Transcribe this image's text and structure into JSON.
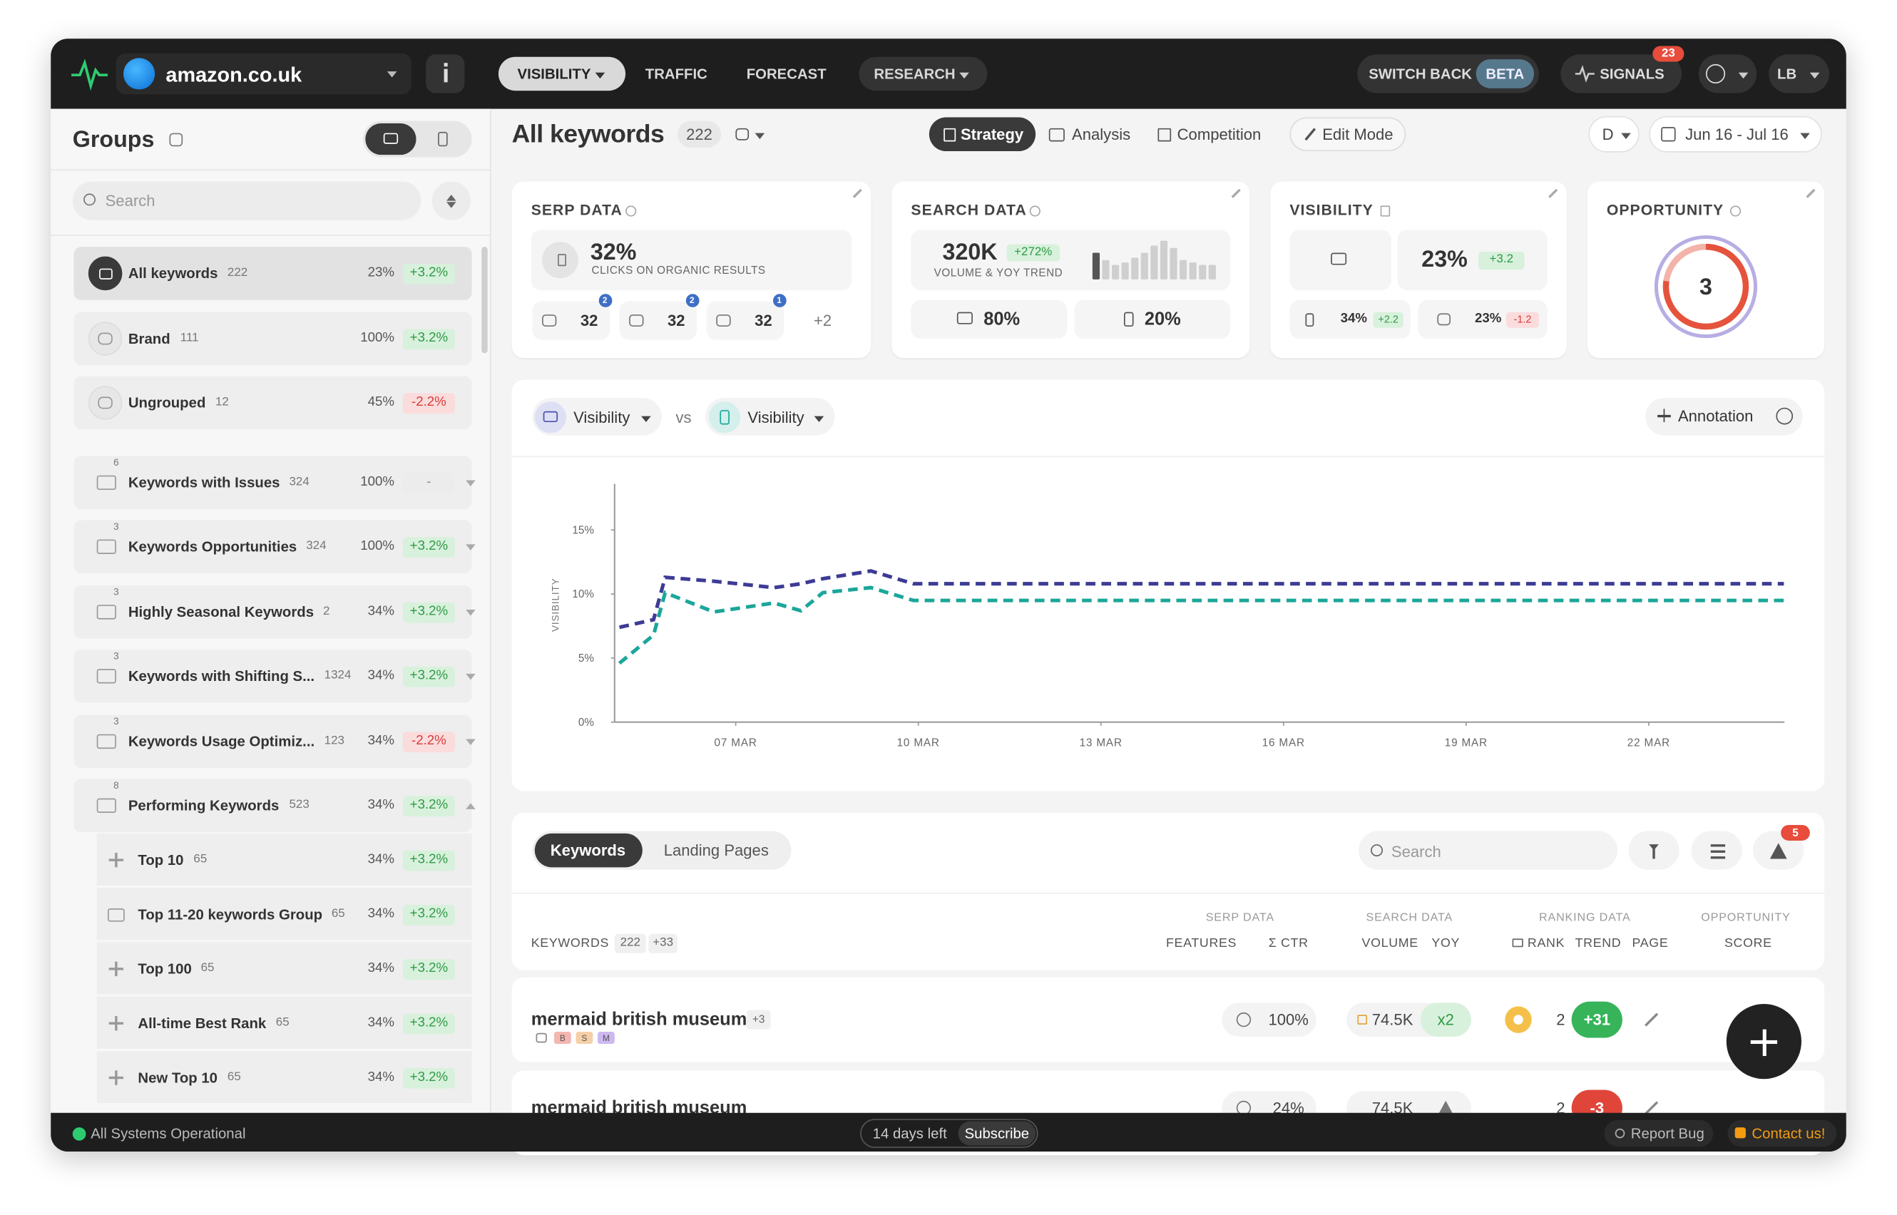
{
  "header": {
    "site": "amazon.co.uk",
    "nav": [
      "VISIBILITY",
      "TRAFFIC",
      "FORECAST",
      "RESEARCH"
    ],
    "switch_back": "SWITCH BACK",
    "beta": "BETA",
    "signals": "SIGNALS",
    "signals_count": "23",
    "user": "LB"
  },
  "sidebar": {
    "title": "Groups",
    "search": "Search",
    "groups": [
      {
        "name": "All keywords",
        "count": "222",
        "percent": "23%",
        "change": "+3.2%"
      },
      {
        "name": "Brand",
        "count": "111",
        "percent": "100%",
        "change": "+3.2%"
      },
      {
        "name": "Ungrouped",
        "count": "12",
        "percent": "45%",
        "change": "-2.2%"
      },
      {
        "name": "Keywords with Issues",
        "count": "324",
        "percent": "100%",
        "change": "-",
        "badge": "6"
      },
      {
        "name": "Keywords Opportunities",
        "count": "324",
        "percent": "100%",
        "change": "+3.2%",
        "badge": "3"
      },
      {
        "name": "Highly Seasonal Keywords",
        "count": "2",
        "percent": "34%",
        "change": "+3.2%",
        "badge": "3"
      },
      {
        "name": "Keywords with Shifting S...",
        "count": "1324",
        "percent": "34%",
        "change": "+3.2%",
        "badge": "3"
      },
      {
        "name": "Keywords Usage Optimiz...",
        "count": "123",
        "percent": "34%",
        "change": "-2.2%",
        "badge": "3"
      },
      {
        "name": "Performing Keywords",
        "count": "523",
        "percent": "34%",
        "change": "+3.2%",
        "badge": "8"
      }
    ],
    "subgroups": [
      {
        "name": "Top 10",
        "count": "65",
        "percent": "34%",
        "change": "+3.2%"
      },
      {
        "name": "Top 11-20 keywords Group",
        "count": "65",
        "percent": "34%",
        "change": "+3.2%"
      },
      {
        "name": "Top 100",
        "count": "65",
        "percent": "34%",
        "change": "+3.2%"
      },
      {
        "name": "All-time Best Rank",
        "count": "65",
        "percent": "34%",
        "change": "+3.2%"
      },
      {
        "name": "New Top 10",
        "count": "65",
        "percent": "34%",
        "change": "+3.2%"
      }
    ]
  },
  "toolbar": {
    "title": "All keywords",
    "count": "222",
    "tabs": [
      "Strategy",
      "Analysis",
      "Competition"
    ],
    "edit_mode": "Edit Mode",
    "interval": "D",
    "date_range": "Jun 16 - Jul 16"
  },
  "cards": {
    "serp": {
      "title": "SERP DATA",
      "value": "32%",
      "caption": "CLICKS ON ORGANIC RESULTS",
      "features": [
        {
          "value": "32",
          "badge": "2"
        },
        {
          "value": "32",
          "badge": "2"
        },
        {
          "value": "32",
          "badge": "1"
        }
      ],
      "more": "+2"
    },
    "search": {
      "title": "SEARCH DATA",
      "value": "320K",
      "trend": "+272%",
      "caption": "VOLUME & YOY TREND",
      "desktop": "80%",
      "mobile": "20%"
    },
    "visibility": {
      "title": "VISIBILITY",
      "value": "23%",
      "change": "+3.2",
      "desktop": "34%",
      "desktop_change": "+2.2",
      "mobile": "23%",
      "mobile_change": "-1.2"
    },
    "opportunity": {
      "title": "OPPORTUNITY",
      "value": "3"
    }
  },
  "chart": {
    "type": "line",
    "metric_a": "Visibility",
    "vs": "vs",
    "metric_b": "Visibility",
    "annotation": "Annotation",
    "ylabel": "VISIBILITY",
    "x": [
      5.09,
      5.65,
      5.84,
      6.64,
      7.63,
      8.07,
      8.43,
      9.22,
      9.92,
      24.22
    ],
    "xlim": [
      5.01,
      24.23
    ],
    "xticks": [
      {
        "value": 7,
        "label": "07 MAR"
      },
      {
        "value": 10,
        "label": "10 MAR"
      },
      {
        "value": 13,
        "label": "13 MAR"
      },
      {
        "value": 16,
        "label": "16 MAR"
      },
      {
        "value": 19,
        "label": "19 MAR"
      },
      {
        "value": 22,
        "label": "22 MAR"
      }
    ],
    "ylim": [
      0,
      18.6
    ],
    "yticks": [
      {
        "value": 0,
        "label": "0%"
      },
      {
        "value": 5,
        "label": "5%"
      },
      {
        "value": 10,
        "label": "10%"
      },
      {
        "value": 15,
        "label": "15%"
      }
    ],
    "grid": false,
    "series": [
      {
        "color": "#3d3b95",
        "values": [
          7.4,
          8.0,
          11.3,
          11.0,
          10.5,
          10.8,
          11.2,
          11.8,
          10.8,
          10.8
        ]
      },
      {
        "color": "#1ba69a",
        "values": [
          4.6,
          6.8,
          10.1,
          8.6,
          9.3,
          8.7,
          10.1,
          10.5,
          9.5,
          9.5
        ]
      }
    ]
  },
  "table": {
    "tabs": [
      "Keywords",
      "Landing Pages"
    ],
    "search": "Search",
    "alerts": "5",
    "groups": [
      "SERP DATA",
      "SEARCH DATA",
      "RANKING DATA",
      "OPPORTUNITY"
    ],
    "columns": [
      "FEATURES",
      "Σ CTR",
      "VOLUME",
      "YOY",
      "RANK",
      "TREND",
      "PAGE",
      "SCORE"
    ],
    "keywords_label": "KEYWORDS",
    "keywords_count": "222",
    "keywords_new": "+33",
    "rows": [
      {
        "keyword": "mermaid british museum",
        "extra": "+3",
        "tags": [
          "B",
          "S",
          "M"
        ],
        "ctr": "100%",
        "volume": "74.5K",
        "yoy": "x2",
        "rank": "2",
        "trend": "+31"
      },
      {
        "keyword": "mermaid british museum",
        "ctr": "24%",
        "volume": "74.5K",
        "rank": "2",
        "trend": "-3"
      }
    ]
  },
  "footer": {
    "status": "All Systems Operational",
    "trial": "14 days left",
    "subscribe": "Subscribe",
    "report": "Report Bug",
    "contact": "Contact us!"
  }
}
